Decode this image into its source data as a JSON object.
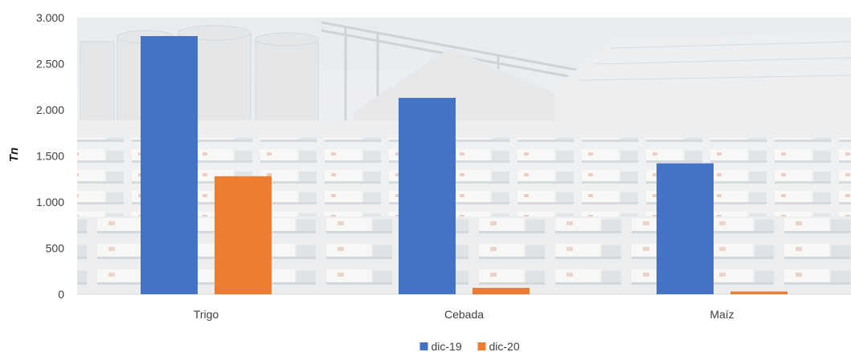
{
  "chart_data": {
    "type": "bar",
    "categories": [
      "Trigo",
      "Cebada",
      "Maíz"
    ],
    "series": [
      {
        "name": "dic-19",
        "values": [
          2800,
          2130,
          1420
        ],
        "color": "#4472C4"
      },
      {
        "name": "dic-20",
        "values": [
          1280,
          70,
          30
        ],
        "color": "#ED7D31"
      }
    ],
    "ylabel": "Tn",
    "ylim": [
      0,
      3000
    ],
    "yticks": [
      0,
      500,
      1000,
      1500,
      2000,
      2500,
      3000
    ],
    "ytick_labels": [
      "0",
      "500",
      "1.000",
      "1.500",
      "2.000",
      "2.500",
      "3.000"
    ],
    "grid": false,
    "legend_position": "bottom",
    "background": "photo of grain silos and parked trucks, faded"
  }
}
